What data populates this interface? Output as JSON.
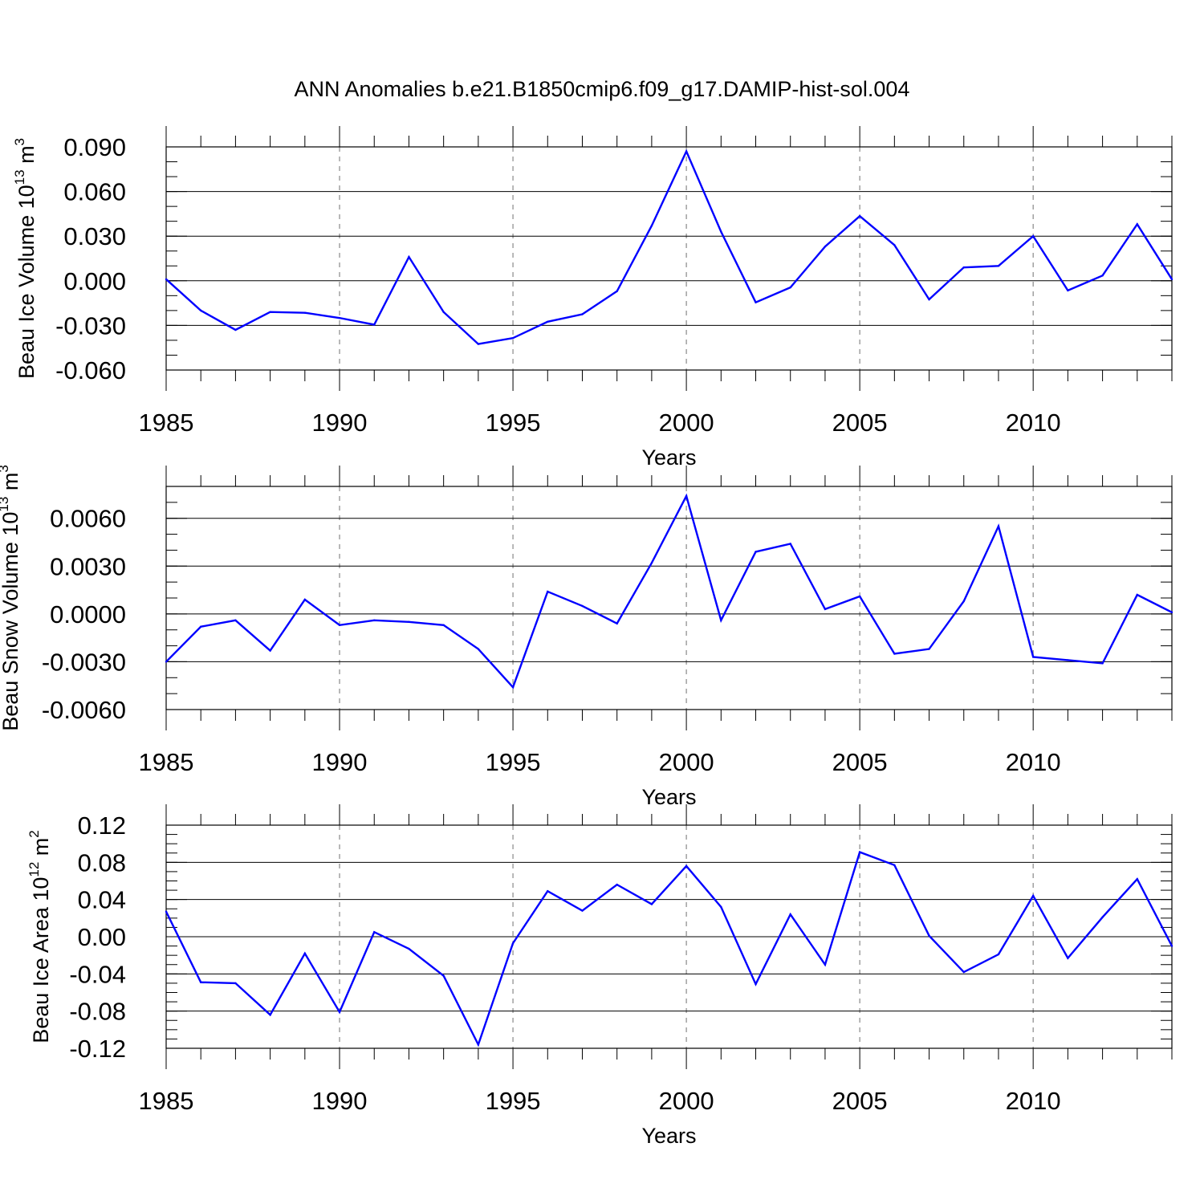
{
  "title": "ANN Anomalies b.e21.B1850cmip6.f09_g17.DAMIP-hist-sol.004",
  "colors": {
    "line": "#0000ff",
    "axis": "#000000",
    "grid": "#888888"
  },
  "chart_data": [
    {
      "type": "line",
      "name": "ice-volume",
      "ylabel_main": "Beau Ice Volume 10",
      "ylabel_exp": "13",
      "ylabel_unit": " m",
      "ylabel_unit_exp": "3",
      "xlabel": "Years",
      "xlim": [
        1985,
        2014
      ],
      "ylim": [
        -0.06,
        0.09
      ],
      "yticks": [
        -0.06,
        -0.03,
        0.0,
        0.03,
        0.06,
        0.09
      ],
      "ytick_labels": [
        "-0.060",
        "-0.030",
        "0.000",
        "0.030",
        "0.060",
        "0.090"
      ],
      "minor_step": 0.01,
      "xticks": [
        1985,
        1990,
        1995,
        2000,
        2005,
        2010
      ],
      "xtick_labels": [
        "1985",
        "1990",
        "1995",
        "2000",
        "2005",
        "2010"
      ],
      "grid_x": [
        1990,
        1995,
        2000,
        2005,
        2010
      ],
      "x": [
        1985,
        1986,
        1987,
        1988,
        1989,
        1990,
        1991,
        1992,
        1993,
        1994,
        1995,
        1996,
        1997,
        1998,
        1999,
        2000,
        2001,
        2002,
        2003,
        2004,
        2005,
        2006,
        2007,
        2008,
        2009,
        2010,
        2011,
        2012,
        2013,
        2014
      ],
      "values": [
        0.001,
        -0.02,
        -0.033,
        -0.021,
        -0.0215,
        -0.025,
        -0.0295,
        0.016,
        -0.021,
        -0.0425,
        -0.0385,
        -0.0275,
        -0.0225,
        -0.007,
        0.037,
        0.087,
        0.033,
        -0.0145,
        -0.0045,
        0.023,
        0.0435,
        0.024,
        -0.0125,
        0.009,
        0.01,
        0.03,
        -0.0065,
        0.0035,
        0.038,
        0.001
      ]
    },
    {
      "type": "line",
      "name": "snow-volume",
      "ylabel_main": "Beau Snow Volume 10",
      "ylabel_exp": "13",
      "ylabel_unit": " m",
      "ylabel_unit_exp": "3",
      "xlabel": "Years",
      "xlim": [
        1985,
        2014
      ],
      "ylim": [
        -0.006,
        0.008
      ],
      "yticks": [
        -0.006,
        -0.003,
        0.0,
        0.003,
        0.006
      ],
      "ytick_labels": [
        "-0.0060",
        "-0.0030",
        "0.0000",
        "0.0030",
        "0.0060"
      ],
      "minor_step": 0.001,
      "xticks": [
        1985,
        1990,
        1995,
        2000,
        2005,
        2010
      ],
      "xtick_labels": [
        "1985",
        "1990",
        "1995",
        "2000",
        "2005",
        "2010"
      ],
      "grid_x": [
        1990,
        1995,
        2000,
        2005,
        2010
      ],
      "x": [
        1985,
        1986,
        1987,
        1988,
        1989,
        1990,
        1991,
        1992,
        1993,
        1994,
        1995,
        1996,
        1997,
        1998,
        1999,
        2000,
        2001,
        2002,
        2003,
        2004,
        2005,
        2006,
        2007,
        2008,
        2009,
        2010,
        2011,
        2012,
        2013,
        2014
      ],
      "values": [
        -0.003,
        -0.0008,
        -0.0004,
        -0.0023,
        0.0009,
        -0.0007,
        -0.0004,
        -0.0005,
        -0.0007,
        -0.0022,
        -0.0046,
        0.0014,
        0.0005,
        -0.0006,
        0.0032,
        0.0074,
        -0.0004,
        0.0039,
        0.0044,
        0.0003,
        0.0011,
        -0.0025,
        -0.0022,
        0.0008,
        0.0055,
        -0.0027,
        -0.0029,
        -0.0031,
        0.0012,
        0.0001
      ]
    },
    {
      "type": "line",
      "name": "ice-area",
      "ylabel_main": "Beau Ice Area 10",
      "ylabel_exp": "12",
      "ylabel_unit": " m",
      "ylabel_unit_exp": "2",
      "xlabel": "Years",
      "xlim": [
        1985,
        2014
      ],
      "ylim": [
        -0.12,
        0.12
      ],
      "yticks": [
        -0.12,
        -0.08,
        -0.04,
        0.0,
        0.04,
        0.08,
        0.12
      ],
      "ytick_labels": [
        "-0.12",
        "-0.08",
        "-0.04",
        "0.00",
        "0.04",
        "0.08",
        "0.12"
      ],
      "minor_step": 0.01,
      "xticks": [
        1985,
        1990,
        1995,
        2000,
        2005,
        2010
      ],
      "xtick_labels": [
        "1985",
        "1990",
        "1995",
        "2000",
        "2005",
        "2010"
      ],
      "grid_x": [
        1990,
        1995,
        2000,
        2005,
        2010
      ],
      "x": [
        1985,
        1986,
        1987,
        1988,
        1989,
        1990,
        1991,
        1992,
        1993,
        1994,
        1995,
        1996,
        1997,
        1998,
        1999,
        2000,
        2001,
        2002,
        2003,
        2004,
        2005,
        2006,
        2007,
        2008,
        2009,
        2010,
        2011,
        2012,
        2013,
        2014
      ],
      "values": [
        0.027,
        -0.049,
        -0.05,
        -0.084,
        -0.018,
        -0.081,
        0.005,
        -0.013,
        -0.042,
        -0.116,
        -0.007,
        0.049,
        0.028,
        0.056,
        0.035,
        0.076,
        0.032,
        -0.051,
        0.024,
        -0.03,
        0.091,
        0.077,
        0.001,
        -0.038,
        -0.019,
        0.044,
        -0.023,
        0.021,
        0.062,
        -0.01
      ]
    }
  ]
}
